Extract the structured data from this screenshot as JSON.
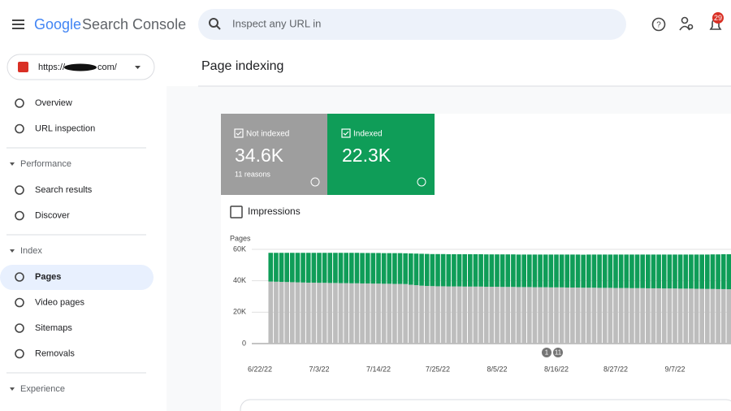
{
  "header": {
    "brand": "Google",
    "product": "Search Console",
    "search_placeholder": "Inspect any URL in",
    "notifications": "29"
  },
  "property": {
    "url_prefix": "https://",
    "url_suffix": "com/"
  },
  "sidebar": {
    "top": [
      "Overview",
      "URL inspection"
    ],
    "sections": [
      {
        "title": "Performance",
        "items": [
          "Search results",
          "Discover"
        ]
      },
      {
        "title": "Index",
        "items": [
          "Pages",
          "Video pages",
          "Sitemaps",
          "Removals"
        ]
      },
      {
        "title": "Experience",
        "items": []
      }
    ]
  },
  "page_title": "Page indexing",
  "summary": {
    "not_indexed": "34.6K",
    "not_indexed_note": "11 reasons",
    "indexed": "22.3K"
  },
  "impressions_label": "Impressions",
  "chart_data": {
    "type": "bar",
    "stacked": true,
    "y_label": "Pages",
    "categories": [
      "6/22/22",
      null,
      null,
      null,
      null,
      null,
      null,
      null,
      null,
      null,
      null,
      "7/3/22",
      null,
      null,
      null,
      null,
      null,
      null,
      null,
      null,
      null,
      null,
      "7/14/22",
      null,
      null,
      null,
      null,
      null,
      null,
      null,
      null,
      null,
      null,
      "7/25/22",
      null,
      null,
      null,
      null,
      null,
      null,
      null,
      null,
      null,
      null,
      "8/5/22",
      null,
      null,
      null,
      null,
      null,
      null,
      null,
      null,
      null,
      null,
      "8/16/22",
      null,
      null,
      null,
      null,
      null,
      null,
      null,
      null,
      null,
      null,
      "8/27/22",
      null,
      null,
      null,
      null,
      null,
      null,
      null,
      null,
      null,
      null,
      "9/7/22",
      null,
      null,
      null,
      null,
      null,
      null,
      null,
      null,
      null,
      null
    ],
    "series": [
      {
        "name": "Not indexed",
        "color": "#bdbdbd",
        "values": [
          null,
          null,
          39500,
          39400,
          39300,
          39200,
          39100,
          39000,
          38900,
          38800,
          38800,
          38700,
          38700,
          38600,
          38600,
          38500,
          38500,
          38400,
          38400,
          38300,
          38300,
          38200,
          38200,
          38100,
          38100,
          38000,
          38000,
          37900,
          37500,
          37200,
          36900,
          36700,
          36600,
          36500,
          36500,
          36400,
          36400,
          36400,
          36300,
          36300,
          36300,
          36300,
          36200,
          36200,
          36200,
          36100,
          36100,
          36100,
          36000,
          36000,
          36000,
          35900,
          35900,
          35900,
          35800,
          35800,
          35800,
          35700,
          35700,
          35700,
          35600,
          35600,
          35600,
          35500,
          35500,
          35500,
          35400,
          35400,
          35400,
          35300,
          35300,
          35300,
          35200,
          35200,
          35200,
          35100,
          35100,
          35100,
          35000,
          35000,
          35000,
          34900,
          34900,
          34800,
          34800,
          34700,
          34700,
          34600
        ]
      },
      {
        "name": "Indexed",
        "color": "#0f9d58",
        "values": [
          null,
          null,
          18300,
          18400,
          18500,
          18600,
          18700,
          18800,
          18900,
          19000,
          19000,
          19100,
          19100,
          19200,
          19200,
          19300,
          19300,
          19400,
          19400,
          19400,
          19400,
          19500,
          19500,
          19500,
          19500,
          19600,
          19600,
          19600,
          19900,
          20100,
          20300,
          20400,
          20400,
          20500,
          20500,
          20500,
          20500,
          20500,
          20600,
          20600,
          20600,
          20600,
          20600,
          20600,
          20600,
          20700,
          20700,
          20700,
          20700,
          20700,
          20700,
          20800,
          20800,
          20800,
          20900,
          20900,
          20900,
          21000,
          21000,
          21000,
          21000,
          21100,
          21100,
          21200,
          21200,
          21200,
          21300,
          21300,
          21300,
          21400,
          21400,
          21400,
          21500,
          21500,
          21500,
          21600,
          21600,
          21600,
          21700,
          21700,
          21700,
          21800,
          21800,
          21900,
          22000,
          22100,
          22200,
          22300
        ]
      }
    ],
    "ylim": [
      0,
      60000
    ],
    "yticks": [
      {
        "value": 0,
        "label": "0"
      },
      {
        "value": 20000,
        "label": "20K"
      },
      {
        "value": 40000,
        "label": "40K"
      },
      {
        "value": 60000,
        "label": "60K"
      }
    ],
    "grid": true,
    "annotations": [
      "1",
      "11"
    ]
  }
}
